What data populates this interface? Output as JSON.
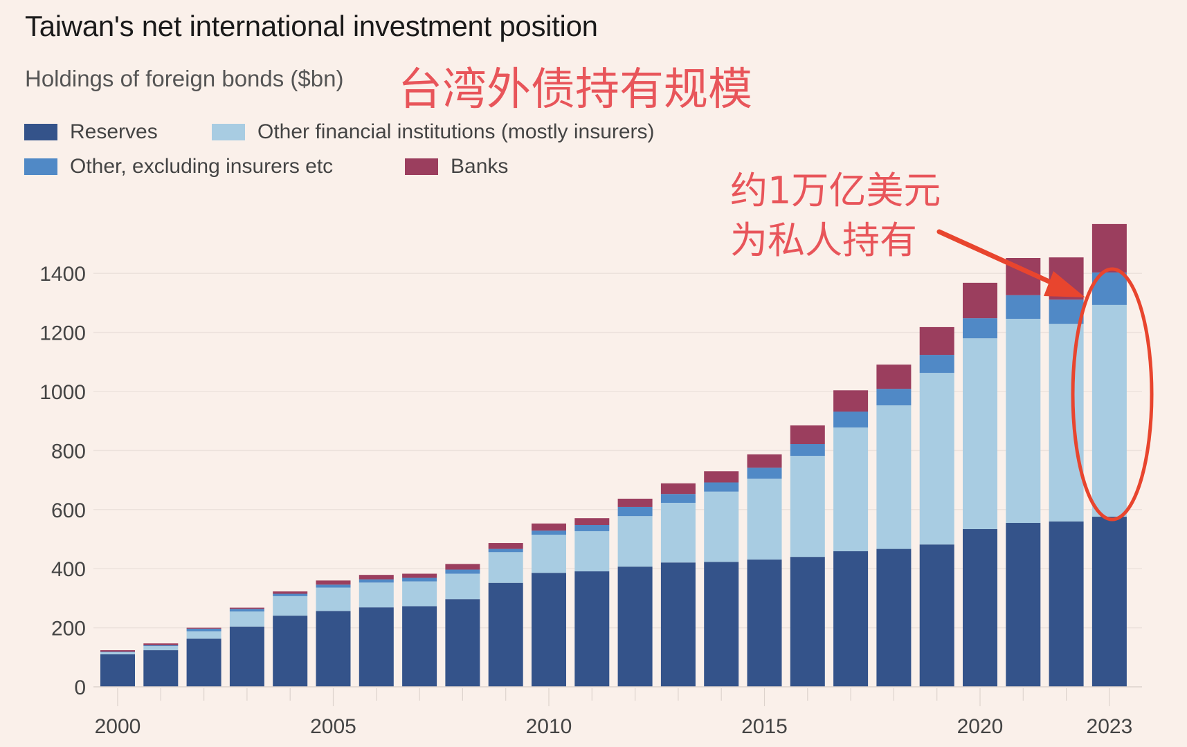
{
  "header": {
    "title": "Taiwan's net international investment position",
    "subtitle": "Holdings of foreign bonds ($bn)",
    "cn_title": "台湾外债持有规模"
  },
  "legend": [
    {
      "label": "Reserves",
      "color": "#34538a"
    },
    {
      "label": "Other financial institutions (mostly insurers)",
      "color": "#a8cce2"
    },
    {
      "label": "Other, excluding insurers etc",
      "color": "#5089c6"
    },
    {
      "label": "Banks",
      "color": "#9b3e5e"
    }
  ],
  "annotation": {
    "line1": "约1万亿美元",
    "line2": "为私人持有",
    "color": "#e8452e"
  },
  "chart_data": {
    "type": "bar",
    "stacked": true,
    "title": "Taiwan's net international investment position",
    "subtitle": "Holdings of foreign bonds ($bn)",
    "xlabel": "",
    "ylabel": "$bn",
    "ylim": [
      0,
      1600
    ],
    "yticks": [
      0,
      200,
      400,
      600,
      800,
      1000,
      1200,
      1400
    ],
    "xtick_labels": [
      "2000",
      "2005",
      "2010",
      "2015",
      "2020",
      "2023"
    ],
    "grid": true,
    "legend_position": "top",
    "categories": [
      "2000",
      "2001",
      "2002",
      "2003",
      "2004",
      "2005",
      "2006",
      "2007",
      "2008",
      "2009",
      "2010",
      "2011",
      "2012",
      "2013",
      "2014",
      "2015",
      "2016",
      "2017",
      "2018",
      "2019",
      "2020",
      "2021",
      "2022",
      "2023"
    ],
    "series": [
      {
        "name": "Reserves",
        "color": "#34538a",
        "values": [
          110,
          124,
          163,
          204,
          241,
          257,
          269,
          273,
          297,
          352,
          386,
          391,
          407,
          421,
          423,
          431,
          440,
          459,
          467,
          482,
          534,
          555,
          560,
          576
        ]
      },
      {
        "name": "Other financial institutions (mostly insurers)",
        "color": "#a8cce2",
        "values": [
          7,
          14,
          25,
          51,
          66,
          79,
          84,
          84,
          86,
          104,
          129,
          136,
          171,
          202,
          238,
          274,
          342,
          419,
          486,
          581,
          646,
          691,
          669,
          717
        ]
      },
      {
        "name": "Other, excluding insurers etc",
        "color": "#5089c6",
        "values": [
          2,
          3,
          9,
          9,
          8,
          10,
          11,
          12,
          14,
          11,
          14,
          21,
          31,
          30,
          31,
          37,
          40,
          54,
          56,
          61,
          68,
          80,
          82,
          110
        ]
      },
      {
        "name": "Banks",
        "color": "#9b3e5e",
        "values": [
          5,
          6,
          3,
          4,
          8,
          14,
          15,
          14,
          19,
          20,
          24,
          23,
          28,
          36,
          38,
          45,
          63,
          72,
          82,
          94,
          120,
          126,
          143,
          164
        ]
      }
    ],
    "annotations": [
      {
        "text": "约1万亿美元为私人持有",
        "target": "2023 non-reserve holdings",
        "shape": "arrow + ellipse"
      }
    ]
  }
}
